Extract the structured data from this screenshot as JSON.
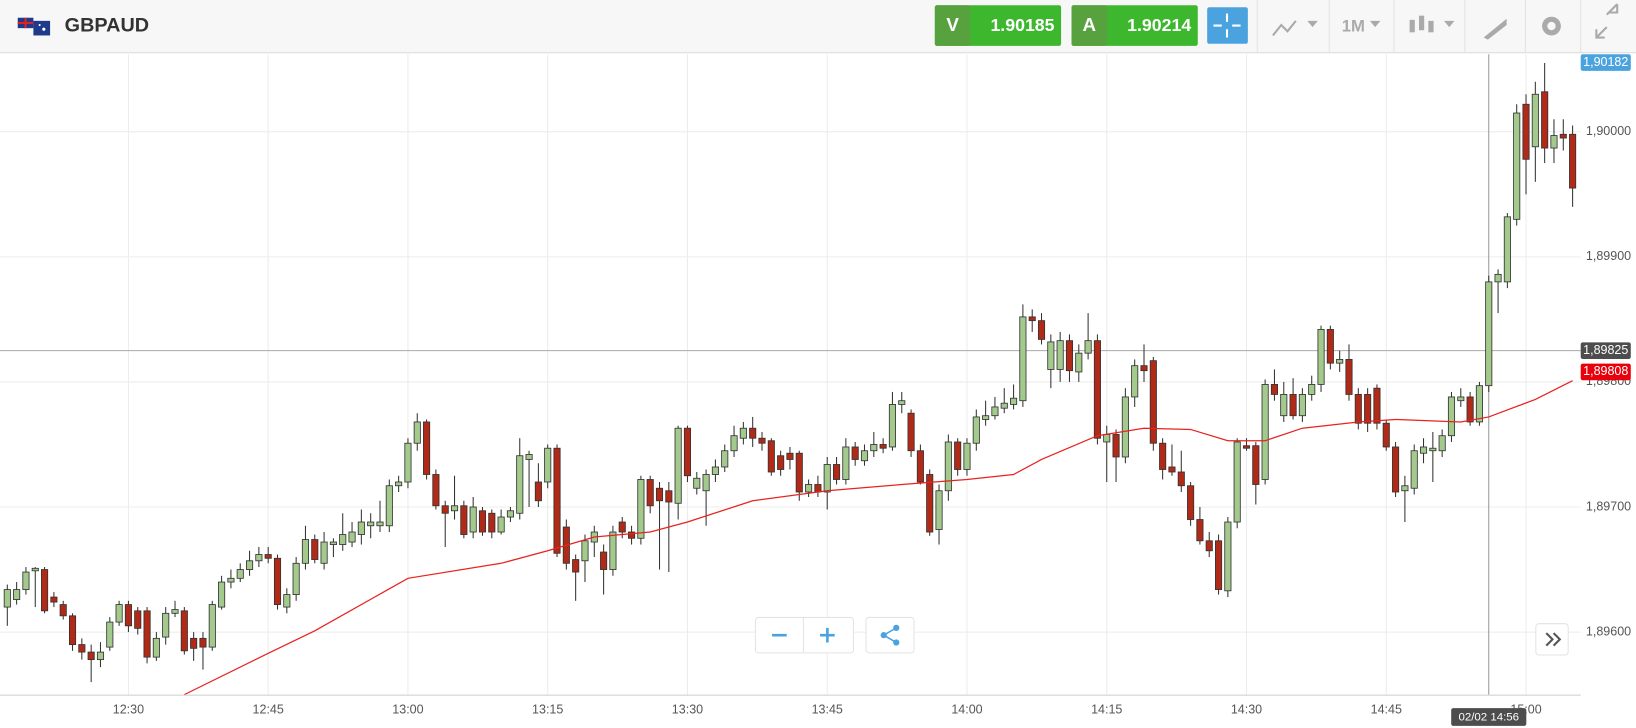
{
  "chart_data": {
    "type": "candlestick",
    "symbol": "GBPAUD",
    "bid_label": "V",
    "bid": 1.90185,
    "ask_label": "A",
    "ask": 1.90214,
    "timeframe": "1M",
    "x": [
      "12:17",
      "12:18",
      "12:19",
      "12:20",
      "12:21",
      "12:22",
      "12:23",
      "12:24",
      "12:25",
      "12:26",
      "12:27",
      "12:28",
      "12:29",
      "12:30",
      "12:31",
      "12:32",
      "12:33",
      "12:34",
      "12:35",
      "12:36",
      "12:37",
      "12:38",
      "12:39",
      "12:40",
      "12:41",
      "12:42",
      "12:43",
      "12:44",
      "12:45",
      "12:46",
      "12:47",
      "12:48",
      "12:49",
      "12:50",
      "12:51",
      "12:52",
      "12:53",
      "12:54",
      "12:55",
      "12:56",
      "12:57",
      "12:58",
      "12:59",
      "13:00",
      "13:01",
      "13:02",
      "13:03",
      "13:04",
      "13:05",
      "13:06",
      "13:07",
      "13:08",
      "13:09",
      "13:10",
      "13:11",
      "13:12",
      "13:13",
      "13:14",
      "13:15",
      "13:16",
      "13:17",
      "13:18",
      "13:19",
      "13:20",
      "13:21",
      "13:22",
      "13:23",
      "13:24",
      "13:25",
      "13:26",
      "13:27",
      "13:28",
      "13:29",
      "13:30",
      "13:31",
      "13:32",
      "13:33",
      "13:34",
      "13:35",
      "13:36",
      "13:37",
      "13:38",
      "13:39",
      "13:40",
      "13:41",
      "13:42",
      "13:43",
      "13:44",
      "13:45",
      "13:46",
      "13:47",
      "13:48",
      "13:49",
      "13:50",
      "13:51",
      "13:52",
      "13:53",
      "13:54",
      "13:55",
      "13:56",
      "13:57",
      "13:58",
      "13:59",
      "14:00",
      "14:01",
      "14:02",
      "14:03",
      "14:04",
      "14:05",
      "14:06",
      "14:07",
      "14:08",
      "14:09",
      "14:10",
      "14:11",
      "14:12",
      "14:13",
      "14:14",
      "14:15",
      "14:16",
      "14:17",
      "14:18",
      "14:19",
      "14:20",
      "14:21",
      "14:22",
      "14:23",
      "14:24",
      "14:25",
      "14:26",
      "14:27",
      "14:28",
      "14:29",
      "14:30",
      "14:31",
      "14:32",
      "14:33",
      "14:34",
      "14:35",
      "14:36",
      "14:37",
      "14:38",
      "14:39",
      "14:40",
      "14:41",
      "14:42",
      "14:43",
      "14:44",
      "14:45",
      "14:46",
      "14:47",
      "14:48",
      "14:49",
      "14:50",
      "14:51",
      "14:52",
      "14:53",
      "14:54",
      "14:55",
      "14:56",
      "14:57",
      "14:58",
      "14:59",
      "15:00",
      "15:01",
      "15:02",
      "15:03",
      "15:04",
      "15:05"
    ],
    "open": [
      1.8962,
      1.89626,
      1.89634,
      1.89649,
      1.8965,
      1.89628,
      1.89622,
      1.89613,
      1.8959,
      1.89584,
      1.89578,
      1.89588,
      1.89608,
      1.89622,
      1.89617,
      1.89617,
      1.8958,
      1.89596,
      1.89615,
      1.89617,
      1.89595,
      1.89595,
      1.89588,
      1.8962,
      1.8964,
      1.89643,
      1.8965,
      1.89657,
      1.89662,
      1.89659,
      1.8962,
      1.8963,
      1.89655,
      1.89674,
      1.89655,
      1.8967,
      1.8967,
      1.89672,
      1.89678,
      1.89685,
      1.89685,
      1.89685,
      1.89717,
      1.8972,
      1.89751,
      1.89768,
      1.89726,
      1.89701,
      1.89697,
      1.89701,
      1.8968,
      1.89697,
      1.89695,
      1.8968,
      1.89692,
      1.89695,
      1.89738,
      1.8972,
      1.8972,
      1.89747,
      1.89684,
      1.89658,
      1.89657,
      1.89672,
      1.89664,
      1.8965,
      1.89688,
      1.8968,
      1.89675,
      1.89722,
      1.89715,
      1.89713,
      1.89703,
      1.89763,
      1.89715,
      1.89713,
      1.89726,
      1.89732,
      1.89745,
      1.89755,
      1.89763,
      1.89755,
      1.89753,
      1.89741,
      1.89743,
      1.89743,
      1.89712,
      1.89718,
      1.89712,
      1.89734,
      1.89722,
      1.89748,
      1.89737,
      1.89745,
      1.8975,
      1.89748,
      1.89782,
      1.89775,
      1.89745,
      1.89726,
      1.89682,
      1.89713,
      1.89752,
      1.8973,
      1.89751,
      1.8977,
      1.89773,
      1.89779,
      1.89782,
      1.89785,
      1.89852,
      1.89849,
      1.8981,
      1.8981,
      1.89833,
      1.89808,
      1.89823,
      1.89833,
      1.89752,
      1.89758,
      1.8974,
      1.89788,
      1.89813,
      1.89817,
      1.89751,
      1.89732,
      1.89728,
      1.89717,
      1.8969,
      1.89673,
      1.89673,
      1.89633,
      1.89688,
      1.89749,
      1.89749,
      1.89722,
      1.89798,
      1.89773,
      1.8979,
      1.89773,
      1.8979,
      1.89798,
      1.89842,
      1.89815,
      1.89818,
      1.8979,
      1.8979,
      1.89795,
      1.89767,
      1.89748,
      1.89713,
      1.89715,
      1.89743,
      1.89745,
      1.89745,
      1.89757,
      1.89785,
      1.89788,
      1.89768,
      1.89797,
      1.8988,
      1.8988,
      1.8993,
      1.90022,
      1.89988,
      1.90032,
      1.89987,
      1.89998,
      1.89998
    ],
    "high": [
      1.89638,
      1.8964,
      1.89652,
      1.89652,
      1.89652,
      1.89632,
      1.89625,
      1.89615,
      1.89595,
      1.8959,
      1.89592,
      1.89612,
      1.89625,
      1.89625,
      1.8962,
      1.8962,
      1.896,
      1.8962,
      1.89625,
      1.8962,
      1.896,
      1.896,
      1.89625,
      1.89645,
      1.8965,
      1.89655,
      1.89665,
      1.89668,
      1.89668,
      1.89662,
      1.89635,
      1.8966,
      1.89685,
      1.89678,
      1.8968,
      1.89675,
      1.89695,
      1.89688,
      1.89698,
      1.89695,
      1.89705,
      1.89722,
      1.89725,
      1.89755,
      1.89775,
      1.8977,
      1.8973,
      1.89705,
      1.89725,
      1.89705,
      1.89708,
      1.897,
      1.89698,
      1.89698,
      1.897,
      1.89755,
      1.89745,
      1.89735,
      1.8975,
      1.8975,
      1.8969,
      1.89662,
      1.89678,
      1.89685,
      1.8967,
      1.89685,
      1.89692,
      1.89685,
      1.89725,
      1.89725,
      1.8972,
      1.8972,
      1.89765,
      1.89765,
      1.89728,
      1.8973,
      1.89738,
      1.8975,
      1.89765,
      1.89768,
      1.89772,
      1.8976,
      1.89755,
      1.89745,
      1.89748,
      1.89745,
      1.89722,
      1.89725,
      1.8974,
      1.8974,
      1.89755,
      1.89752,
      1.8975,
      1.8976,
      1.89755,
      1.89792,
      1.89792,
      1.89778,
      1.8975,
      1.8973,
      1.89718,
      1.89758,
      1.89755,
      1.89755,
      1.89778,
      1.89785,
      1.89788,
      1.89795,
      1.89798,
      1.89862,
      1.89858,
      1.89855,
      1.89838,
      1.8984,
      1.89838,
      1.8983,
      1.89855,
      1.89838,
      1.89765,
      1.89762,
      1.89795,
      1.89818,
      1.8983,
      1.8982,
      1.89755,
      1.8975,
      1.89745,
      1.8972,
      1.897,
      1.8968,
      1.89678,
      1.89692,
      1.89755,
      1.89755,
      1.89752,
      1.89802,
      1.8981,
      1.898,
      1.89803,
      1.89795,
      1.89805,
      1.89845,
      1.89845,
      1.89825,
      1.8983,
      1.89795,
      1.89795,
      1.89798,
      1.8977,
      1.89752,
      1.89725,
      1.8975,
      1.89755,
      1.8976,
      1.89762,
      1.89792,
      1.89795,
      1.89792,
      1.898,
      1.89885,
      1.8989,
      1.89935,
      1.90022,
      1.9003,
      1.9004,
      1.90055,
      1.9001,
      1.9001,
      1.90005
    ],
    "low": [
      1.89605,
      1.89622,
      1.8963,
      1.8962,
      1.89615,
      1.8962,
      1.8961,
      1.89585,
      1.89578,
      1.8956,
      1.89572,
      1.89585,
      1.89605,
      1.896,
      1.89598,
      1.89575,
      1.89577,
      1.8959,
      1.89612,
      1.89582,
      1.89577,
      1.8957,
      1.89585,
      1.89618,
      1.89635,
      1.8964,
      1.89645,
      1.89652,
      1.89655,
      1.89618,
      1.89615,
      1.89625,
      1.8965,
      1.89655,
      1.8965,
      1.8966,
      1.89665,
      1.89668,
      1.8967,
      1.89675,
      1.8968,
      1.8968,
      1.89712,
      1.89715,
      1.89745,
      1.89722,
      1.89698,
      1.89668,
      1.8969,
      1.89675,
      1.89675,
      1.89677,
      1.89675,
      1.89678,
      1.89688,
      1.8969,
      1.897,
      1.897,
      1.89715,
      1.8966,
      1.8965,
      1.89625,
      1.8964,
      1.8966,
      1.8963,
      1.89645,
      1.89675,
      1.8967,
      1.8967,
      1.89695,
      1.8965,
      1.89648,
      1.8969,
      1.8972,
      1.8971,
      1.89685,
      1.8972,
      1.89728,
      1.8974,
      1.8975,
      1.89748,
      1.89745,
      1.89725,
      1.89725,
      1.8973,
      1.89705,
      1.89708,
      1.89708,
      1.89698,
      1.89718,
      1.89718,
      1.89733,
      1.89733,
      1.8974,
      1.89743,
      1.89745,
      1.89775,
      1.8974,
      1.89718,
      1.89677,
      1.8967,
      1.89705,
      1.89725,
      1.89725,
      1.89745,
      1.89765,
      1.8977,
      1.89775,
      1.89778,
      1.8978,
      1.8984,
      1.8983,
      1.89795,
      1.898,
      1.898,
      1.898,
      1.89818,
      1.8975,
      1.8972,
      1.8972,
      1.89735,
      1.8978,
      1.898,
      1.89745,
      1.89722,
      1.89725,
      1.89712,
      1.89685,
      1.8967,
      1.8966,
      1.8963,
      1.89628,
      1.89683,
      1.89745,
      1.89702,
      1.89718,
      1.89785,
      1.89768,
      1.8977,
      1.89768,
      1.89785,
      1.89792,
      1.8981,
      1.89808,
      1.89785,
      1.89762,
      1.8976,
      1.89762,
      1.89745,
      1.89708,
      1.89688,
      1.8971,
      1.89735,
      1.8972,
      1.8974,
      1.89752,
      1.8978,
      1.89765,
      1.89765,
      1.89792,
      1.89855,
      1.89875,
      1.89925,
      1.8995,
      1.8996,
      1.89975,
      1.89975,
      1.89985,
      1.8994
    ],
    "close": [
      1.89634,
      1.89634,
      1.89648,
      1.89651,
      1.89617,
      1.89624,
      1.89613,
      1.8959,
      1.89584,
      1.89578,
      1.89584,
      1.89608,
      1.89622,
      1.89605,
      1.89603,
      1.8958,
      1.89595,
      1.89615,
      1.89618,
      1.89585,
      1.89587,
      1.89588,
      1.89622,
      1.8964,
      1.89643,
      1.8965,
      1.89657,
      1.89662,
      1.89659,
      1.89622,
      1.8963,
      1.89655,
      1.89674,
      1.89658,
      1.89672,
      1.89672,
      1.89678,
      1.8968,
      1.89688,
      1.89688,
      1.89688,
      1.89717,
      1.8972,
      1.89751,
      1.89768,
      1.89726,
      1.89701,
      1.89695,
      1.89701,
      1.89678,
      1.897,
      1.8968,
      1.8968,
      1.89692,
      1.89697,
      1.89741,
      1.89742,
      1.89705,
      1.89747,
      1.89663,
      1.89655,
      1.89648,
      1.89673,
      1.8968,
      1.8965,
      1.8968,
      1.8968,
      1.89675,
      1.89722,
      1.89701,
      1.89705,
      1.89704,
      1.89763,
      1.89725,
      1.89723,
      1.89726,
      1.89732,
      1.89745,
      1.89757,
      1.89763,
      1.89755,
      1.89751,
      1.89728,
      1.8973,
      1.89738,
      1.89712,
      1.89718,
      1.89712,
      1.89734,
      1.89722,
      1.89748,
      1.89738,
      1.89745,
      1.8975,
      1.89747,
      1.89782,
      1.89785,
      1.89745,
      1.8972,
      1.8968,
      1.89713,
      1.89752,
      1.8973,
      1.89751,
      1.89772,
      1.89773,
      1.8978,
      1.89783,
      1.89787,
      1.89852,
      1.89849,
      1.89834,
      1.89832,
      1.89833,
      1.89809,
      1.89823,
      1.89833,
      1.89755,
      1.89758,
      1.8974,
      1.89788,
      1.89813,
      1.89809,
      1.89751,
      1.8973,
      1.89728,
      1.89717,
      1.8969,
      1.89673,
      1.89665,
      1.89634,
      1.89688,
      1.89752,
      1.89747,
      1.89718,
      1.89798,
      1.8979,
      1.8979,
      1.89773,
      1.8979,
      1.89798,
      1.89842,
      1.89815,
      1.89818,
      1.8979,
      1.89767,
      1.89767,
      1.89767,
      1.89748,
      1.89712,
      1.89717,
      1.89745,
      1.89748,
      1.89747,
      1.89757,
      1.89788,
      1.89788,
      1.89768,
      1.89797,
      1.8988,
      1.89886,
      1.89932,
      1.90015,
      1.89978,
      1.9003,
      1.89987,
      1.89997,
      1.89995,
      1.89955
    ],
    "up_color": "#a3c98d",
    "down_color": "#b02a17",
    "ma": {
      "color": "#e8231f",
      "x": [
        "12:36",
        "12:45",
        "12:50",
        "13:00",
        "13:10",
        "13:15",
        "13:20",
        "13:26",
        "13:30",
        "13:37",
        "13:45",
        "13:53",
        "14:00",
        "14:05",
        "14:08",
        "14:14",
        "14:19",
        "14:24",
        "14:28",
        "14:32",
        "14:36",
        "14:42",
        "14:46",
        "14:53",
        "14:56",
        "15:01",
        "15:05"
      ],
      "values": [
        1.8955,
        1.89583,
        1.89601,
        1.89643,
        1.89655,
        1.89665,
        1.89676,
        1.8968,
        1.89688,
        1.89705,
        1.89713,
        1.89718,
        1.89722,
        1.89726,
        1.89738,
        1.89757,
        1.89763,
        1.89762,
        1.89753,
        1.89753,
        1.89763,
        1.89768,
        1.8977,
        1.89768,
        1.89772,
        1.89786,
        1.89801
      ]
    },
    "ylim": [
      1.8955,
      1.90062
    ],
    "yticks": [
      {
        "value": 1.9,
        "label": "1,90000"
      },
      {
        "value": 1.899,
        "label": "1,89900"
      },
      {
        "value": 1.898,
        "label": "1,89800"
      },
      {
        "value": 1.897,
        "label": "1,89700"
      },
      {
        "value": 1.896,
        "label": "1,89600"
      }
    ],
    "xticks": [
      "12:30",
      "12:45",
      "13:00",
      "13:15",
      "13:30",
      "13:45",
      "14:00",
      "14:15",
      "14:30",
      "14:45",
      "15:00"
    ],
    "price_markers": [
      {
        "value": 1.89825,
        "label": "1,89825",
        "color": "#4d4d4d"
      },
      {
        "value": 1.89808,
        "label": "1,89808",
        "color": "#e8000b"
      }
    ],
    "top_marker": {
      "value": 1.90182,
      "label": "1,90182",
      "color": "#4aa3df"
    },
    "crosshair": {
      "x": "14:56",
      "label": "02/02 14:56"
    }
  }
}
